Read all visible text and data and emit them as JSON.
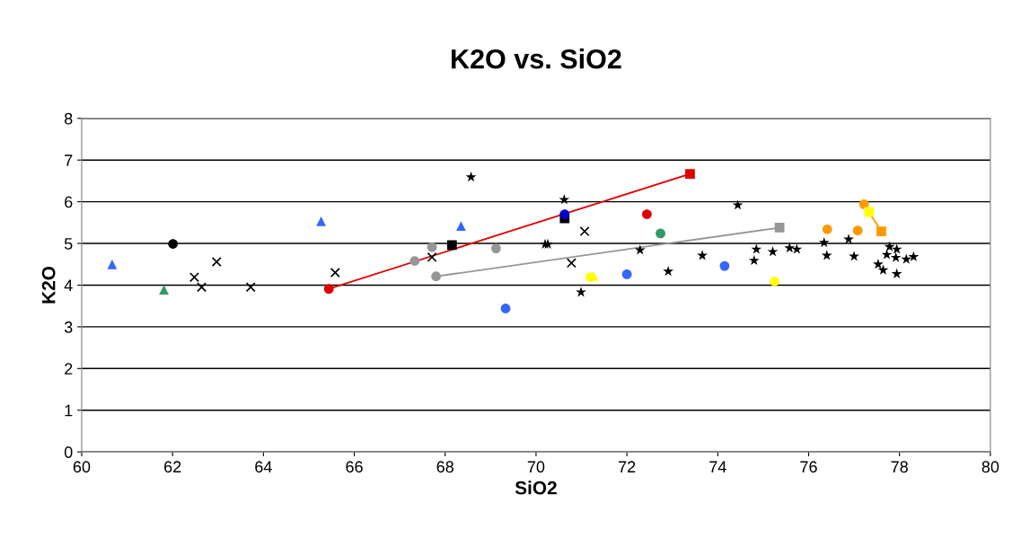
{
  "chart_data": {
    "type": "scatter",
    "title": "K2O vs. SiO2",
    "xlabel": "SiO2",
    "ylabel": "K2O",
    "xlim": [
      60,
      80
    ],
    "xticks": [
      60,
      62,
      64,
      66,
      68,
      70,
      72,
      74,
      76,
      78,
      80
    ],
    "ylim": [
      0,
      8
    ],
    "yticks": [
      0,
      1,
      2,
      3,
      4,
      5,
      6,
      7,
      8
    ],
    "grid": "y",
    "legend": false,
    "series": [
      {
        "type": "line",
        "color": "#e00000",
        "marker": "none",
        "x": [
          65.44,
          73.39
        ],
        "values": [
          3.91,
          6.67
        ]
      },
      {
        "type": "line",
        "color": "#969696",
        "marker": "none",
        "x": [
          67.8,
          75.36
        ],
        "values": [
          4.21,
          5.38
        ]
      },
      {
        "type": "line",
        "color": "#ff9900",
        "marker": "none",
        "x": [
          77.22,
          77.6
        ],
        "values": [
          5.94,
          5.29
        ]
      },
      {
        "color": "#3366ff",
        "marker": "triangle",
        "x": [
          60.67,
          65.27,
          68.35
        ],
        "values": [
          4.5,
          5.53,
          5.42
        ]
      },
      {
        "color": "#339966",
        "marker": "triangle",
        "x": [
          61.81
        ],
        "values": [
          3.89
        ]
      },
      {
        "color": "#000000",
        "marker": "circle",
        "x": [
          62.01
        ],
        "values": [
          4.99
        ]
      },
      {
        "color": "#000000",
        "marker": "cross",
        "x": [
          62.48,
          62.64,
          62.97,
          63.72,
          65.58,
          67.71,
          70.78,
          71.07
        ],
        "values": [
          4.19,
          3.95,
          4.56,
          3.95,
          4.3,
          4.67,
          4.53,
          5.29
        ]
      },
      {
        "color": "#000000",
        "marker": "star",
        "x": [
          68.57,
          70.62,
          70.2,
          70.26,
          70.99,
          72.29,
          72.91,
          73.66,
          74.44,
          74.85,
          74.8,
          75.21,
          75.58,
          75.74,
          76.34,
          76.4,
          76.88,
          77.0,
          77.53,
          77.64,
          77.78,
          77.72,
          77.94,
          77.92,
          77.94,
          78.15,
          78.31
        ],
        "values": [
          6.59,
          6.05,
          4.98,
          4.98,
          3.83,
          4.84,
          4.33,
          4.71,
          5.92,
          4.86,
          4.59,
          4.8,
          4.89,
          4.86,
          5.02,
          4.71,
          5.1,
          4.69,
          4.5,
          4.36,
          4.92,
          4.73,
          4.86,
          4.66,
          4.27,
          4.62,
          4.68
        ]
      },
      {
        "color": "#e00000",
        "marker": "circle",
        "x": [
          65.44,
          72.44
        ],
        "values": [
          3.91,
          5.7
        ]
      },
      {
        "color": "#e00000",
        "marker": "square",
        "x": [
          73.39
        ],
        "values": [
          6.67
        ]
      },
      {
        "color": "#969696",
        "marker": "circle",
        "x": [
          67.8,
          67.33,
          67.71,
          69.12
        ],
        "values": [
          4.21,
          4.58,
          4.91,
          4.88
        ]
      },
      {
        "color": "#969696",
        "marker": "square",
        "x": [
          75.36
        ],
        "values": [
          5.38
        ]
      },
      {
        "color": "#000000",
        "marker": "square",
        "x": [
          68.15,
          70.63
        ],
        "values": [
          4.96,
          5.6
        ]
      },
      {
        "color": "#0000cc",
        "marker": "circle",
        "x": [
          70.63
        ],
        "values": [
          5.7
        ]
      },
      {
        "color": "#339966",
        "marker": "circle",
        "x": [
          72.74
        ],
        "values": [
          5.24
        ]
      },
      {
        "color": "#3366ff",
        "marker": "circle",
        "x": [
          72.0
        ],
        "values": [
          4.26
        ]
      },
      {
        "color": "#3366ff",
        "marker": "circle",
        "x": [
          69.33,
          74.15
        ],
        "values": [
          3.44,
          4.46
        ]
      },
      {
        "color": "#ffff00",
        "marker": "circle",
        "x": [
          71.2,
          75.25
        ],
        "values": [
          4.19,
          4.09
        ]
      },
      {
        "color": "#ffff00",
        "marker": "triangle",
        "x": [
          71.27
        ],
        "values": [
          4.22
        ]
      },
      {
        "color": "#ff9900",
        "marker": "circle",
        "x": [
          76.41
        ],
        "values": [
          5.34
        ]
      },
      {
        "color": "#ff9900",
        "marker": "circle",
        "x": [
          77.08,
          77.22
        ],
        "values": [
          5.31,
          5.94
        ]
      },
      {
        "color": "#ffff00",
        "marker": "square",
        "x": [
          77.33
        ],
        "values": [
          5.76
        ]
      },
      {
        "color": "#ff9900",
        "marker": "square",
        "x": [
          77.6
        ],
        "values": [
          5.29
        ]
      }
    ]
  }
}
